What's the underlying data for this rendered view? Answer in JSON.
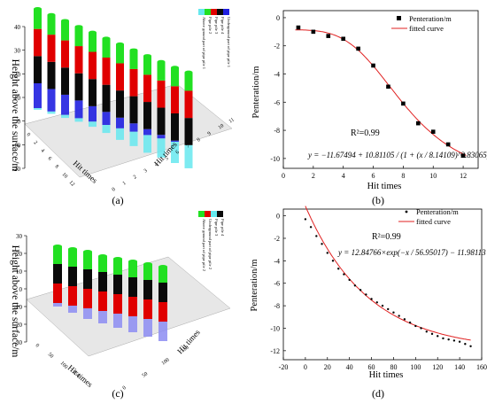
{
  "captions": {
    "a": "(a)",
    "b": "(b)",
    "c": "(c)",
    "d": "(d)"
  },
  "colors": {
    "green": "#22e022",
    "red": "#e00000",
    "black": "#0a0a0a",
    "blue": "#2020e0",
    "cyan": "#66e8ee",
    "lightblue": "#8c8cf2",
    "fit": "#e02020",
    "floor": "#d4d4d4"
  },
  "chart_data": [
    {
      "id": "a",
      "type": "bar3d",
      "zlabel": "Height above the surface/m",
      "xlabel": "Hit times",
      "ylabel": "Hit times",
      "zlim": [
        -20,
        40
      ],
      "zticks": [
        -20,
        -10,
        0,
        10,
        20,
        30,
        40
      ],
      "depth_ticks": [
        "0",
        "2",
        "4",
        "6",
        "8",
        "10",
        "12"
      ],
      "width_ticks": [
        "0",
        "1",
        "2",
        "3",
        "4",
        "5",
        "6",
        "7",
        "8",
        "9",
        "10",
        "11"
      ],
      "legend": [
        "Above ground part of pipe pile 1",
        "Pipe pile 2",
        "Pipe pile 3",
        "Pipe pile 4",
        "Underground part of pipe pile 1"
      ],
      "series": [
        {
          "name": "Above ground part of pipe pile 1",
          "values": [
            8.5,
            8.4,
            8.3,
            8.2,
            8.2,
            8.1,
            8.1,
            8.0,
            8.0,
            7.9,
            7.9,
            7.8
          ]
        },
        {
          "name": "Pipe pile 2",
          "values": [
            11.5,
            11.5,
            11.5,
            11.5,
            11.5,
            11.5,
            11.5,
            11.5,
            11.5,
            11.5,
            11.5,
            11.5
          ]
        },
        {
          "name": "Pipe pile 3",
          "values": [
            11.5,
            11.5,
            11.5,
            11.5,
            11.5,
            11.5,
            11.5,
            11.5,
            11.5,
            11.5,
            11.5,
            11.5
          ]
        },
        {
          "name": "Pipe pile 4",
          "values": [
            10.5,
            9.5,
            8.5,
            7.5,
            6.5,
            5.5,
            4.5,
            3.5,
            2.5,
            1.5,
            0.5,
            0
          ]
        },
        {
          "name": "Underground part of pipe pile 1",
          "values": [
            0.7,
            1.0,
            1.3,
            1.5,
            2.2,
            3.4,
            4.9,
            6.1,
            7.5,
            8.1,
            9.0,
            9.8
          ]
        }
      ]
    },
    {
      "id": "b",
      "type": "scatter",
      "xlabel": "Hit times",
      "ylabel": "Penteration/m",
      "xlim": [
        0,
        13
      ],
      "ylim": [
        -10.7,
        0.5
      ],
      "xticks": [
        0,
        2,
        4,
        6,
        8,
        10,
        12
      ],
      "yticks": [
        0,
        -2,
        -4,
        -6,
        -8,
        -10
      ],
      "legend": [
        "Penteration/m",
        "fitted curve"
      ],
      "annotation_r2": "R²=0.99",
      "equation": "y = −11.67494 + 10.81105 / (1 + (x / 8.14109)^3.83065)",
      "x": [
        1,
        2,
        3,
        4,
        5,
        6,
        7,
        8,
        9,
        10,
        11,
        12
      ],
      "y": [
        -0.7,
        -1.0,
        -1.3,
        -1.5,
        -2.2,
        -3.4,
        -4.9,
        -6.1,
        -7.5,
        -8.1,
        -9.0,
        -9.8
      ],
      "fit": {
        "A1": -11.67494,
        "A2": 10.81105,
        "x0": 8.14109,
        "p": 3.83065
      }
    },
    {
      "id": "c",
      "type": "bar3d",
      "zlabel": "Height above the surface/m",
      "xlabel": "Hit times",
      "ylabel": "Hit times",
      "zlim": [
        -30,
        30
      ],
      "zticks": [
        -30,
        -20,
        -10,
        0,
        10,
        20,
        30
      ],
      "depth_ticks": [
        "0",
        "50",
        "100",
        "150"
      ],
      "width_ticks": [
        "0",
        "50",
        "100",
        "150"
      ],
      "legend": [
        "Above ground part of pipe pile 2",
        "Underground part of pipe pile 2",
        "Pipe pile 3",
        "Pipe pile 4"
      ],
      "series": [
        {
          "name": "Above ground part of pipe pile 2",
          "values": [
            10,
            10,
            10,
            9,
            9,
            9,
            9,
            9
          ]
        },
        {
          "name": "Pipe pile 3",
          "values": [
            11,
            11,
            11,
            11,
            11,
            11,
            11,
            11
          ]
        },
        {
          "name": "Pipe pile 4",
          "values": [
            11,
            11,
            11,
            11,
            11,
            11,
            11,
            11
          ]
        },
        {
          "name": "Underground part of pipe pile 2",
          "values": [
            2,
            4,
            6,
            7,
            8,
            9,
            10,
            11
          ]
        }
      ]
    },
    {
      "id": "d",
      "type": "scatter",
      "xlabel": "Hit times",
      "ylabel": "Penteration/m",
      "xlim": [
        -20,
        160
      ],
      "ylim": [
        -12.8,
        0.6
      ],
      "xticks": [
        -20,
        0,
        20,
        40,
        60,
        80,
        100,
        120,
        140,
        160
      ],
      "yticks": [
        0,
        -2,
        -4,
        -6,
        -8,
        -10,
        -12
      ],
      "legend": [
        "Penteration/m",
        "fitted curve"
      ],
      "annotation_r2": "R²=0.99",
      "equation": "y = 12.84766×exp(−x / 56.95017) − 11.98113",
      "x": [
        0,
        5,
        10,
        15,
        20,
        25,
        30,
        35,
        40,
        45,
        50,
        55,
        60,
        65,
        70,
        75,
        80,
        85,
        90,
        95,
        100,
        105,
        110,
        115,
        120,
        125,
        130,
        135,
        140,
        145,
        150
      ],
      "y": [
        -0.3,
        -1.0,
        -1.8,
        -2.5,
        -3.3,
        -4.0,
        -4.7,
        -5.2,
        -5.7,
        -6.2,
        -6.6,
        -7.0,
        -7.4,
        -7.7,
        -8.0,
        -8.3,
        -8.6,
        -8.9,
        -9.2,
        -9.5,
        -9.8,
        -10.0,
        -10.3,
        -10.5,
        -10.7,
        -10.9,
        -11.0,
        -11.1,
        -11.2,
        -11.4,
        -11.6
      ],
      "fit": {
        "a": 12.84766,
        "t": 56.95017,
        "c": -11.98113
      }
    }
  ]
}
